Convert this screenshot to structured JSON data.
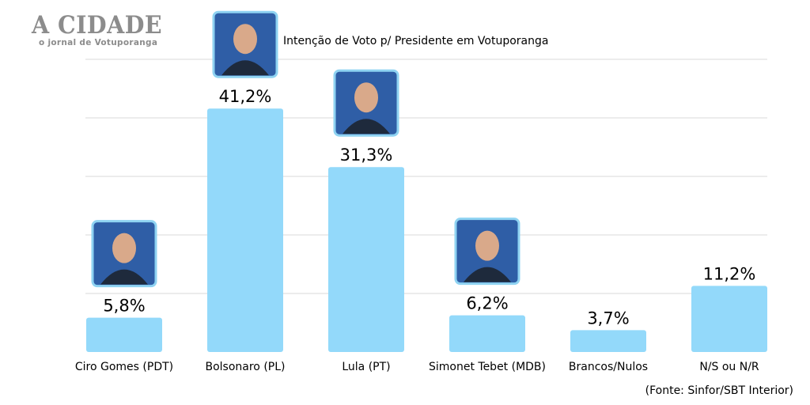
{
  "logo": {
    "title": "A CIDADE",
    "subtitle": "o jornal de Votuporanga"
  },
  "chart_data": {
    "type": "bar",
    "title": "Intenção de Voto p/ Presidente em Votuporanga",
    "source": "(Fonte: Sinfor/SBT Interior)",
    "categories": [
      "Ciro Gomes (PDT)",
      "Bolsonaro (PL)",
      "Lula (PT)",
      "Simonet Tebet (MDB)",
      "Brancos/Nulos",
      "N/S ou N/R"
    ],
    "values": [
      5.8,
      41.2,
      31.3,
      6.2,
      3.7,
      11.2
    ],
    "value_labels": [
      "5,8%",
      "41,2%",
      "31,3%",
      "6,2%",
      "3,7%",
      "11,2%"
    ],
    "candidate_photos": [
      true,
      true,
      true,
      true,
      false,
      false
    ],
    "ylim": [
      0,
      50
    ],
    "grid": true,
    "legend": "none",
    "bar_color": "#93d9fa"
  }
}
